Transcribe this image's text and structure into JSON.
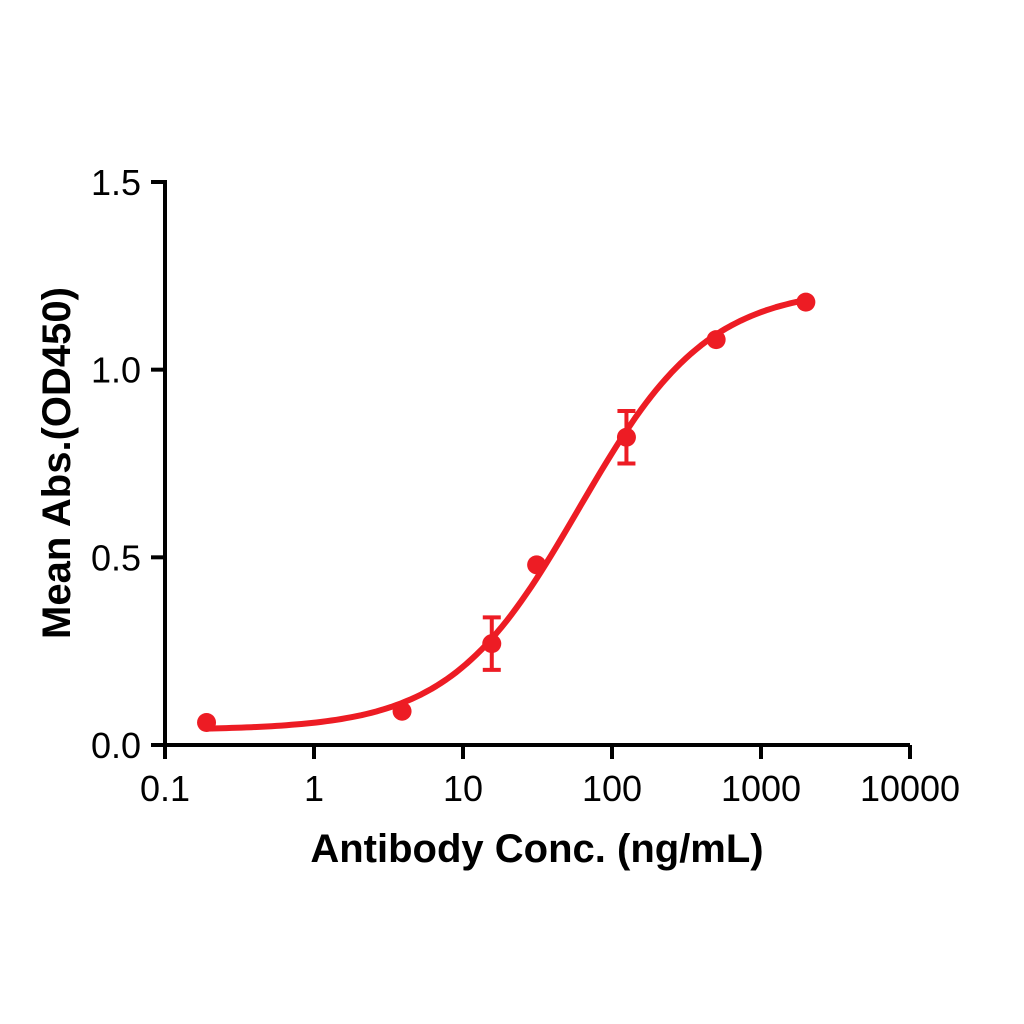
{
  "chart_data": {
    "type": "scatter",
    "title": "",
    "xlabel": "Antibody Conc. (ng/mL)",
    "ylabel": "Mean Abs.(OD450)",
    "x_scale": "log",
    "y_scale": "linear",
    "xlim": [
      0.1,
      10000
    ],
    "ylim": [
      0.0,
      1.5
    ],
    "x_ticks": [
      0.1,
      1,
      10,
      100,
      1000,
      10000
    ],
    "x_tick_labels": [
      "0.1",
      "1",
      "10",
      "100",
      "1000",
      "10000"
    ],
    "y_ticks": [
      0.0,
      0.5,
      1.0,
      1.5
    ],
    "y_tick_labels": [
      "0.0",
      "0.5",
      "1.0",
      "1.5"
    ],
    "grid": false,
    "legend": false,
    "axis_color": "#000000",
    "series": [
      {
        "name": "Mean Abs.(OD450)",
        "color": "#ED1C24",
        "marker": "circle",
        "points": [
          {
            "x": 0.19,
            "y": 0.06,
            "err": 0
          },
          {
            "x": 3.9,
            "y": 0.09,
            "err": 0
          },
          {
            "x": 15.6,
            "y": 0.27,
            "err": 0.07
          },
          {
            "x": 31.2,
            "y": 0.48,
            "err": 0
          },
          {
            "x": 125,
            "y": 0.82,
            "err": 0.07
          },
          {
            "x": 500,
            "y": 1.08,
            "err": 0
          },
          {
            "x": 2000,
            "y": 1.18,
            "err": 0
          }
        ],
        "fit_curve": {
          "model": "4PL",
          "bottom": 0.04,
          "top": 1.22,
          "ec50": 60,
          "hill": 1.0,
          "x_range": [
            0.19,
            2000
          ]
        }
      }
    ]
  }
}
